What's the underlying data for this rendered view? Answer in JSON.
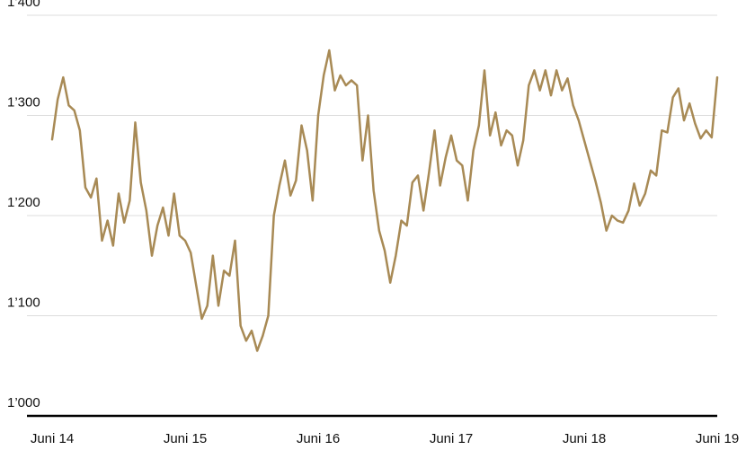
{
  "chart_data": {
    "type": "line",
    "categories": [
      "Juni 14",
      null,
      null,
      null,
      null,
      null,
      null,
      null,
      null,
      null,
      null,
      null,
      null,
      null,
      null,
      null,
      null,
      null,
      null,
      null,
      null,
      null,
      null,
      null,
      "Juni 15",
      null,
      null,
      null,
      null,
      null,
      null,
      null,
      null,
      null,
      null,
      null,
      null,
      null,
      null,
      null,
      null,
      null,
      null,
      null,
      null,
      null,
      null,
      null,
      "Juni 16",
      null,
      null,
      null,
      null,
      null,
      null,
      null,
      null,
      null,
      null,
      null,
      null,
      null,
      null,
      null,
      null,
      null,
      null,
      null,
      null,
      null,
      null,
      null,
      "Juni 17",
      null,
      null,
      null,
      null,
      null,
      null,
      null,
      null,
      null,
      null,
      null,
      null,
      null,
      null,
      null,
      null,
      null,
      null,
      null,
      null,
      null,
      null,
      null,
      "Juni 18",
      null,
      null,
      null,
      null,
      null,
      null,
      null,
      null,
      null,
      null,
      null,
      null,
      null,
      null,
      null,
      null,
      null,
      null,
      null,
      null,
      null,
      null,
      null,
      "Juni 19"
    ],
    "values": [
      1276,
      1316,
      1338,
      1310,
      1305,
      1285,
      1228,
      1218,
      1237,
      1175,
      1195,
      1170,
      1222,
      1193,
      1215,
      1293,
      1233,
      1205,
      1160,
      1190,
      1208,
      1180,
      1222,
      1180,
      1175,
      1163,
      1130,
      1097,
      1110,
      1160,
      1110,
      1145,
      1140,
      1175,
      1090,
      1075,
      1085,
      1065,
      1080,
      1100,
      1200,
      1230,
      1255,
      1220,
      1235,
      1290,
      1265,
      1215,
      1300,
      1340,
      1365,
      1325,
      1340,
      1330,
      1335,
      1330,
      1255,
      1300,
      1225,
      1185,
      1165,
      1133,
      1160,
      1195,
      1190,
      1233,
      1240,
      1205,
      1243,
      1285,
      1230,
      1258,
      1280,
      1255,
      1250,
      1215,
      1265,
      1290,
      1345,
      1280,
      1303,
      1270,
      1285,
      1280,
      1250,
      1275,
      1330,
      1345,
      1325,
      1345,
      1320,
      1345,
      1325,
      1337,
      1310,
      1295,
      1275,
      1255,
      1235,
      1213,
      1185,
      1200,
      1195,
      1193,
      1205,
      1232,
      1210,
      1222,
      1245,
      1240,
      1285,
      1283,
      1318,
      1327,
      1295,
      1312,
      1292,
      1277,
      1285,
      1278,
      1338
    ],
    "color": "#a88a55",
    "ylim": [
      1000,
      1400
    ],
    "yticks": [
      {
        "value": 1000,
        "label": "1’000"
      },
      {
        "value": 1100,
        "label": "1’100"
      },
      {
        "value": 1200,
        "label": "1’200"
      },
      {
        "value": 1300,
        "label": "1’300"
      },
      {
        "value": 1400,
        "label": "1’400"
      }
    ],
    "grid": true
  }
}
